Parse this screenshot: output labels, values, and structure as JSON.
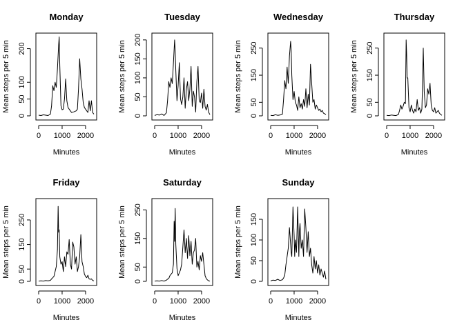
{
  "chart_data": [
    {
      "type": "line",
      "title": "Monday",
      "xlabel": "Minutes",
      "ylabel": "Mean steps per 5 min",
      "xlim": [
        0,
        2355
      ],
      "ylim": [
        0,
        234
      ],
      "xticks": [
        0,
        1000,
        2000
      ],
      "yticks": [
        0,
        50,
        100,
        200
      ],
      "x": [
        0,
        100,
        200,
        300,
        400,
        500,
        550,
        600,
        650,
        700,
        750,
        800,
        850,
        875,
        900,
        950,
        1000,
        1050,
        1100,
        1150,
        1200,
        1250,
        1300,
        1350,
        1400,
        1500,
        1600,
        1650,
        1700,
        1750,
        1800,
        1850,
        1900,
        1950,
        2000,
        2050,
        2100,
        2150,
        2200,
        2250,
        2300,
        2355
      ],
      "y": [
        2,
        1,
        3,
        2,
        1,
        5,
        30,
        90,
        75,
        100,
        85,
        140,
        210,
        235,
        150,
        30,
        18,
        20,
        50,
        110,
        45,
        25,
        20,
        15,
        10,
        12,
        15,
        20,
        80,
        170,
        110,
        80,
        40,
        25,
        20,
        15,
        10,
        45,
        15,
        45,
        10,
        5
      ]
    },
    {
      "type": "line",
      "title": "Tuesday",
      "xlabel": "Minutes",
      "ylabel": "Mean steps per 5 min",
      "xlim": [
        0,
        2355
      ],
      "ylim": [
        0,
        207
      ],
      "xticks": [
        0,
        1000,
        2000
      ],
      "yticks": [
        0,
        50,
        100,
        150,
        200
      ],
      "x": [
        0,
        100,
        200,
        300,
        400,
        500,
        550,
        600,
        650,
        700,
        750,
        800,
        850,
        875,
        900,
        950,
        1000,
        1050,
        1100,
        1150,
        1200,
        1250,
        1300,
        1350,
        1400,
        1450,
        1500,
        1550,
        1600,
        1650,
        1700,
        1750,
        1800,
        1850,
        1900,
        1950,
        2000,
        2050,
        2100,
        2150,
        2200,
        2250,
        2300,
        2355
      ],
      "y": [
        1,
        3,
        2,
        5,
        1,
        8,
        40,
        90,
        75,
        100,
        85,
        140,
        200,
        170,
        120,
        40,
        80,
        140,
        45,
        30,
        50,
        100,
        20,
        70,
        90,
        40,
        70,
        130,
        25,
        65,
        50,
        10,
        90,
        130,
        40,
        35,
        60,
        20,
        70,
        25,
        15,
        30,
        10,
        3
      ]
    },
    {
      "type": "line",
      "title": "Wednesday",
      "xlabel": "Minutes",
      "ylabel": "Mean steps per 5 min",
      "xlim": [
        0,
        2355
      ],
      "ylim": [
        0,
        290
      ],
      "xticks": [
        0,
        1000,
        2000
      ],
      "yticks": [
        0,
        50,
        150,
        250
      ],
      "x": [
        0,
        100,
        200,
        300,
        400,
        500,
        550,
        600,
        650,
        700,
        750,
        800,
        850,
        875,
        900,
        950,
        1000,
        1050,
        1100,
        1150,
        1200,
        1250,
        1300,
        1350,
        1400,
        1450,
        1500,
        1550,
        1600,
        1650,
        1700,
        1750,
        1800,
        1850,
        1900,
        1950,
        2000,
        2050,
        2100,
        2150,
        2200,
        2250,
        2300,
        2355
      ],
      "y": [
        2,
        1,
        4,
        2,
        3,
        6,
        60,
        130,
        100,
        180,
        120,
        220,
        275,
        240,
        150,
        60,
        90,
        50,
        40,
        20,
        70,
        30,
        45,
        25,
        60,
        35,
        100,
        30,
        80,
        40,
        190,
        120,
        50,
        60,
        25,
        40,
        30,
        20,
        25,
        15,
        20,
        10,
        8,
        4
      ]
    },
    {
      "type": "line",
      "title": "Thursday",
      "xlabel": "Minutes",
      "ylabel": "Mean steps per 5 min",
      "xlim": [
        0,
        2355
      ],
      "ylim": [
        0,
        290
      ],
      "xticks": [
        0,
        1000,
        2000
      ],
      "yticks": [
        0,
        50,
        150,
        250
      ],
      "x": [
        0,
        100,
        200,
        300,
        400,
        500,
        550,
        600,
        650,
        700,
        750,
        800,
        830,
        850,
        875,
        900,
        950,
        1000,
        1050,
        1100,
        1150,
        1200,
        1250,
        1300,
        1350,
        1400,
        1450,
        1500,
        1530,
        1560,
        1600,
        1650,
        1700,
        1750,
        1800,
        1850,
        1900,
        1950,
        2000,
        2050,
        2100,
        2150,
        2200,
        2250,
        2300,
        2355
      ],
      "y": [
        2,
        1,
        3,
        2,
        1,
        5,
        20,
        40,
        25,
        35,
        50,
        45,
        280,
        230,
        140,
        140,
        30,
        15,
        40,
        20,
        10,
        25,
        15,
        60,
        20,
        30,
        10,
        25,
        120,
        250,
        90,
        30,
        40,
        100,
        80,
        120,
        40,
        20,
        15,
        30,
        10,
        15,
        20,
        10,
        5,
        2
      ]
    },
    {
      "type": "line",
      "title": "Friday",
      "xlabel": "Minutes",
      "ylabel": "Mean steps per 5 min",
      "xlim": [
        0,
        2355
      ],
      "ylim": [
        0,
        320
      ],
      "xticks": [
        0,
        1000,
        2000
      ],
      "yticks": [
        0,
        50,
        150,
        250
      ],
      "x": [
        0,
        100,
        200,
        300,
        400,
        500,
        550,
        600,
        650,
        700,
        750,
        800,
        830,
        850,
        875,
        900,
        950,
        1000,
        1050,
        1100,
        1150,
        1200,
        1250,
        1300,
        1350,
        1400,
        1450,
        1500,
        1550,
        1600,
        1650,
        1700,
        1750,
        1800,
        1850,
        1900,
        1950,
        2000,
        2050,
        2100,
        2150,
        2200,
        2250,
        2300,
        2355
      ],
      "y": [
        1,
        2,
        1,
        3,
        2,
        4,
        10,
        15,
        20,
        40,
        60,
        130,
        305,
        200,
        210,
        100,
        70,
        80,
        40,
        100,
        60,
        120,
        110,
        170,
        70,
        50,
        160,
        140,
        70,
        100,
        40,
        60,
        100,
        190,
        80,
        60,
        30,
        20,
        15,
        25,
        10,
        8,
        10,
        4,
        2
      ]
    },
    {
      "type": "line",
      "title": "Saturday",
      "xlabel": "Minutes",
      "ylabel": "Mean steps per 5 min",
      "xlim": [
        0,
        2355
      ],
      "ylim": [
        0,
        275
      ],
      "xticks": [
        0,
        1000,
        2000
      ],
      "yticks": [
        0,
        50,
        150,
        250
      ],
      "x": [
        0,
        100,
        200,
        300,
        400,
        500,
        550,
        600,
        650,
        700,
        750,
        800,
        830,
        850,
        875,
        900,
        950,
        1000,
        1050,
        1100,
        1150,
        1200,
        1250,
        1300,
        1350,
        1400,
        1450,
        1500,
        1550,
        1600,
        1650,
        1700,
        1750,
        1800,
        1850,
        1900,
        1950,
        2000,
        2050,
        2100,
        2150,
        2200,
        2250,
        2300,
        2355
      ],
      "y": [
        1,
        2,
        1,
        3,
        1,
        4,
        8,
        10,
        20,
        25,
        30,
        60,
        210,
        140,
        255,
        130,
        45,
        20,
        30,
        40,
        60,
        120,
        180,
        100,
        150,
        80,
        160,
        90,
        140,
        60,
        100,
        110,
        150,
        50,
        70,
        40,
        90,
        70,
        100,
        60,
        20,
        10,
        5,
        2,
        1
      ]
    },
    {
      "type": "line",
      "title": "Sunday",
      "xlabel": "Minutes",
      "ylabel": "Mean steps per 5 min",
      "xlim": [
        0,
        2355
      ],
      "ylim": [
        0,
        190
      ],
      "xticks": [
        0,
        1000,
        2000
      ],
      "yticks": [
        0,
        50,
        100,
        150
      ],
      "x": [
        0,
        100,
        200,
        300,
        400,
        500,
        550,
        600,
        650,
        700,
        750,
        800,
        850,
        875,
        900,
        950,
        1000,
        1025,
        1050,
        1100,
        1150,
        1200,
        1225,
        1250,
        1300,
        1350,
        1400,
        1450,
        1500,
        1550,
        1600,
        1650,
        1700,
        1750,
        1800,
        1850,
        1900,
        1950,
        2000,
        2050,
        2100,
        2150,
        2200,
        2250,
        2300,
        2355
      ],
      "y": [
        1,
        3,
        2,
        5,
        2,
        4,
        8,
        15,
        40,
        60,
        80,
        130,
        90,
        70,
        60,
        180,
        110,
        60,
        100,
        70,
        180,
        60,
        120,
        140,
        80,
        100,
        60,
        175,
        130,
        70,
        120,
        60,
        80,
        40,
        20,
        60,
        30,
        50,
        20,
        40,
        15,
        30,
        20,
        10,
        25,
        5
      ]
    }
  ]
}
